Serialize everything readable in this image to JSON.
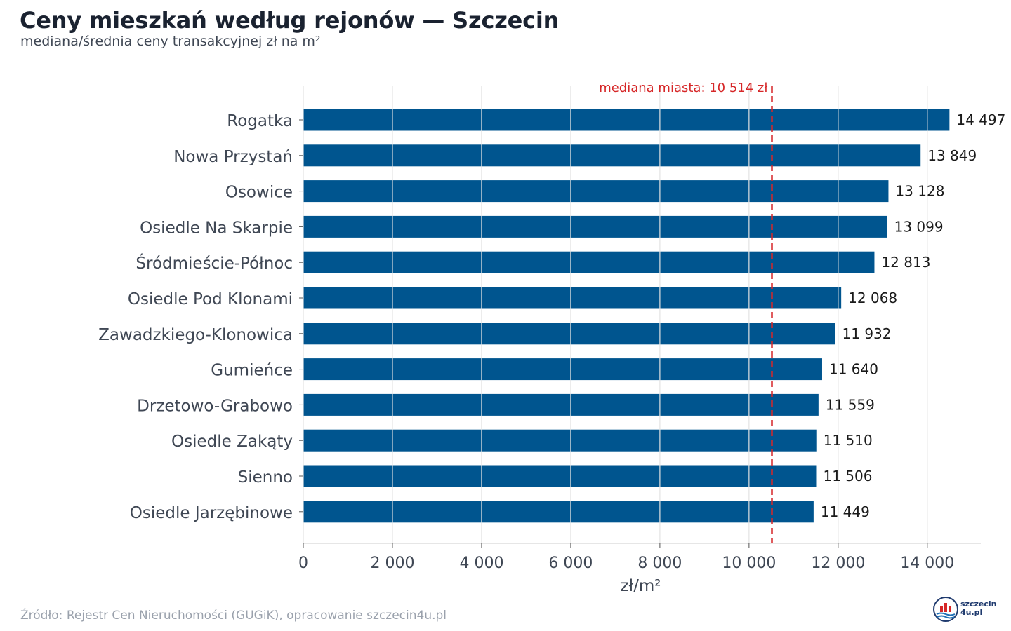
{
  "chart_data": {
    "type": "bar",
    "orientation": "horizontal",
    "title": "Ceny mieszkań według rejonów — Szczecin",
    "subtitle": "mediana/średnia ceny transakcyjnej zł na m²",
    "xlabel": "zł/m²",
    "ylabel": "",
    "xlim": [
      0,
      15200
    ],
    "x_ticks": [
      {
        "value": 0,
        "label": "0"
      },
      {
        "value": 2000,
        "label": "2 000"
      },
      {
        "value": 4000,
        "label": "4 000"
      },
      {
        "value": 6000,
        "label": "6 000"
      },
      {
        "value": 8000,
        "label": "8 000"
      },
      {
        "value": 10000,
        "label": "10 000"
      },
      {
        "value": 12000,
        "label": "12 000"
      },
      {
        "value": 14000,
        "label": "14 000"
      }
    ],
    "grid": "vertical",
    "categories": [
      "Rogatka",
      "Nowa Przystań",
      "Osowice",
      "Osiedle Na Skarpie",
      "Śródmieście-Północ",
      "Osiedle Pod Klonami",
      "Zawadzkiego-Klonowica",
      "Gumieńce",
      "Drzetowo-Grabowo",
      "Osiedle Zakąty",
      "Sienno",
      "Osiedle Jarzębinowe"
    ],
    "values": [
      14497,
      13849,
      13128,
      13099,
      12813,
      12068,
      11932,
      11640,
      11559,
      11510,
      11506,
      11449
    ],
    "value_labels": [
      "14 497",
      "13 849",
      "13 128",
      "13 099",
      "12 813",
      "12 068",
      "11 932",
      "11 640",
      "11 559",
      "11 510",
      "11 506",
      "11 449"
    ],
    "bar_color": "#00558f",
    "reference_line": {
      "value": 10514,
      "label": "mediana miasta: 10 514 zł",
      "color": "#d62728",
      "style": "dashed"
    }
  },
  "footer": {
    "source": "Źródło: Rejestr Cen Nieruchomości (GUGiK), opracowanie szczecin4u.pl",
    "logo_line1": "szczecin",
    "logo_line2": "4u.pl"
  }
}
